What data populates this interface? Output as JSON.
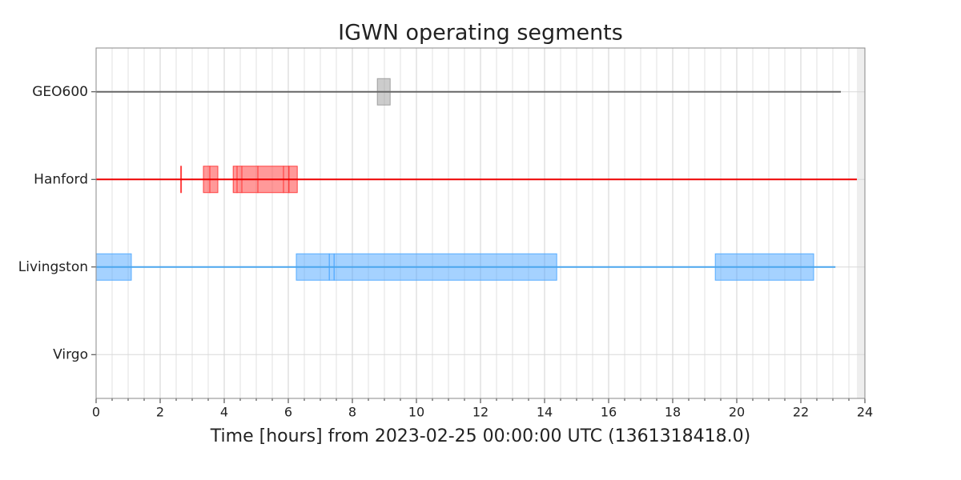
{
  "chart_data": {
    "type": "segments",
    "title": "IGWN operating segments",
    "xlabel": "Time [hours] from 2023-02-25 00:00:00 UTC (1361318418.0)",
    "xlim": [
      0,
      24
    ],
    "xticks": [
      0,
      2,
      4,
      6,
      8,
      10,
      12,
      14,
      16,
      18,
      20,
      22,
      24
    ],
    "xminor_step": 0.5,
    "grid": true,
    "shaded_region": [
      23.75,
      24
    ],
    "series": [
      {
        "name": "GEO600",
        "color": "#999999",
        "line_color": "#666666",
        "known": [
          0,
          23.25
        ],
        "segments": [
          [
            8.78,
            9.18
          ]
        ]
      },
      {
        "name": "Hanford",
        "color": "#ff3333",
        "line_color": "#ee0000",
        "known": [
          0,
          23.75
        ],
        "segments": [
          [
            2.64,
            2.66
          ],
          [
            3.35,
            3.55
          ],
          [
            3.55,
            3.8
          ],
          [
            4.28,
            4.4
          ],
          [
            4.4,
            4.55
          ],
          [
            4.55,
            5.05
          ],
          [
            5.05,
            5.85
          ],
          [
            5.85,
            6.02
          ],
          [
            6.02,
            6.28
          ]
        ]
      },
      {
        "name": "Livingston",
        "color": "#4ba6ff",
        "line_color": "#4ba6ee",
        "known": [
          0,
          23.08
        ],
        "segments": [
          [
            0,
            1.1
          ],
          [
            6.25,
            7.28
          ],
          [
            7.28,
            7.43
          ],
          [
            7.43,
            14.38
          ],
          [
            19.33,
            22.4
          ]
        ]
      },
      {
        "name": "Virgo",
        "color": "#9b59b6",
        "line_color": "#9b59b6",
        "known": null,
        "segments": []
      }
    ]
  }
}
